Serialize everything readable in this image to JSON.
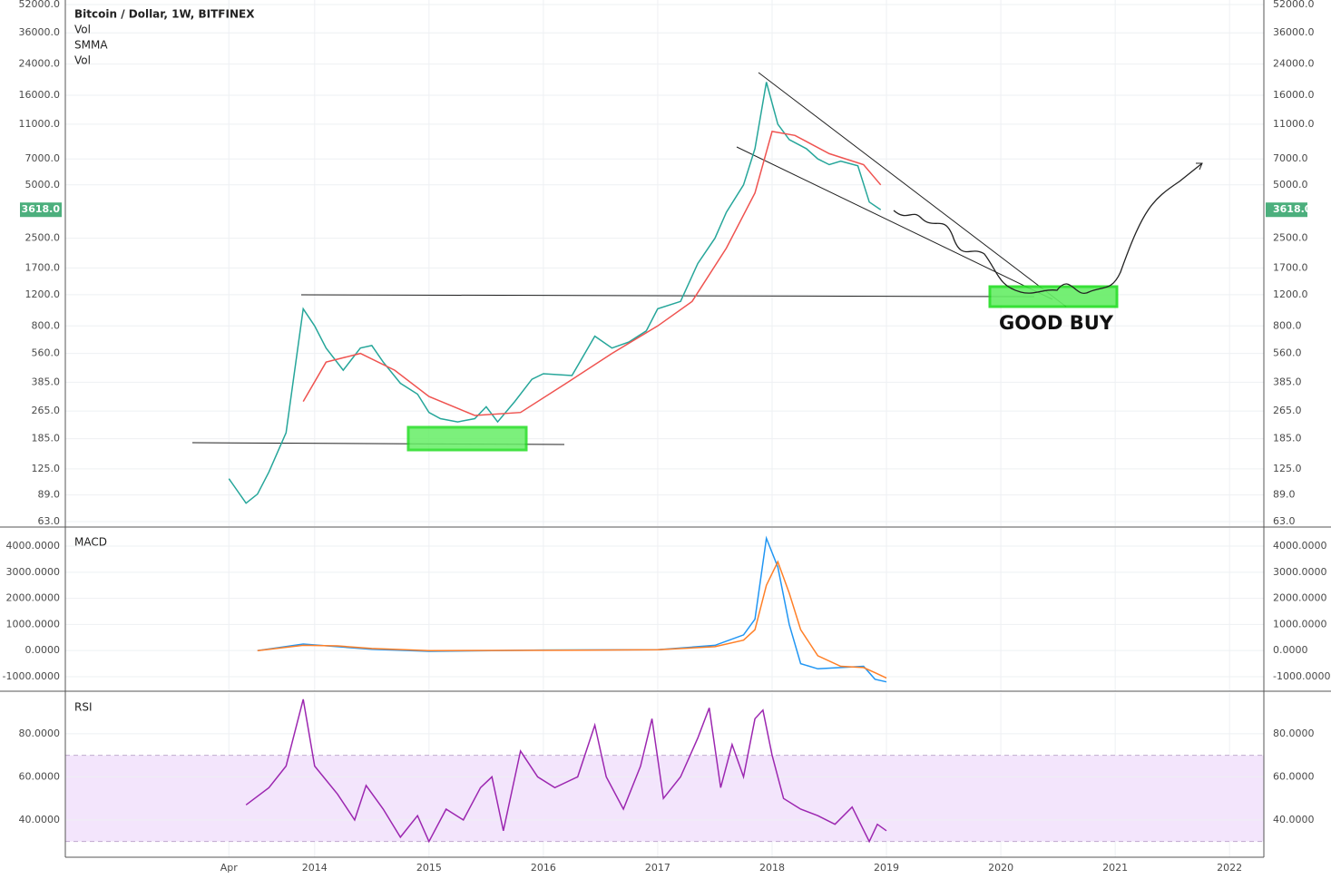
{
  "chart_data": [
    {
      "type": "line",
      "legend": [
        "Bitcoin / Dollar, 1W, BITFINEX",
        "Vol",
        "SMMA",
        "Vol"
      ],
      "log_scale": true,
      "grid": true,
      "ylim": [
        59.4,
        55170
      ],
      "yticks": [
        {
          "value": 52000,
          "label": "52000.0"
        },
        {
          "value": 36000,
          "label": "36000.0"
        },
        {
          "value": 24000,
          "label": "24000.0"
        },
        {
          "value": 16000,
          "label": "16000.0"
        },
        {
          "value": 11000,
          "label": "11000.0"
        },
        {
          "value": 7000,
          "label": "7000.0"
        },
        {
          "value": 5000,
          "label": "5000.0"
        },
        {
          "value": 2500,
          "label": "2500.0"
        },
        {
          "value": 1700,
          "label": "1700.0"
        },
        {
          "value": 1200,
          "label": "1200.0"
        },
        {
          "value": 800,
          "label": "800.0"
        },
        {
          "value": 560,
          "label": "560.0"
        },
        {
          "value": 385,
          "label": "385.0"
        },
        {
          "value": 265,
          "label": "265.0"
        },
        {
          "value": 185,
          "label": "185.0"
        },
        {
          "value": 125,
          "label": "125.0"
        },
        {
          "value": 89,
          "label": "89.0"
        },
        {
          "value": 63,
          "label": "63.0"
        }
      ],
      "last_price": {
        "value": 3618,
        "label": "3618.0",
        "color": "#4caf7d"
      },
      "series": [
        {
          "color": "#26a69a",
          "x": [
            2013.25,
            2013.4,
            2013.5,
            2013.6,
            2013.75,
            2013.9,
            2014.0,
            2014.1,
            2014.25,
            2014.4,
            2014.5,
            2014.6,
            2014.75,
            2014.9,
            2015.0,
            2015.1,
            2015.25,
            2015.4,
            2015.5,
            2015.6,
            2015.75,
            2015.9,
            2016.0,
            2016.25,
            2016.45,
            2016.6,
            2016.75,
            2016.9,
            2017.0,
            2017.2,
            2017.35,
            2017.5,
            2017.6,
            2017.75,
            2017.85,
            2017.95,
            2018.05,
            2018.15,
            2018.3,
            2018.4,
            2018.5,
            2018.6,
            2018.75,
            2018.85,
            2018.95
          ],
          "values": [
            110,
            80,
            90,
            120,
            200,
            1000,
            800,
            600,
            450,
            600,
            620,
            500,
            380,
            330,
            260,
            240,
            230,
            240,
            280,
            230,
            300,
            400,
            430,
            420,
            700,
            600,
            650,
            750,
            1000,
            1100,
            1800,
            2500,
            3500,
            5000,
            8000,
            19000,
            11000,
            9000,
            8000,
            7000,
            6500,
            6800,
            6400,
            4000,
            3618
          ]
        },
        {
          "color": "#ef5350",
          "x": [
            2013.9,
            2014.1,
            2014.4,
            2014.7,
            2015.0,
            2015.4,
            2015.8,
            2016.2,
            2016.6,
            2017.0,
            2017.3,
            2017.6,
            2017.85,
            2018.0,
            2018.2,
            2018.5,
            2018.8,
            2018.95
          ],
          "values": [
            300,
            500,
            560,
            450,
            320,
            250,
            260,
            380,
            560,
            800,
            1100,
            2200,
            4500,
            10000,
            9500,
            7500,
            6500,
            5000
          ]
        }
      ],
      "annotations": [
        "GOOD BUY"
      ]
    },
    {
      "type": "line",
      "title": "MACD",
      "grid": true,
      "ylim": [
        -1557,
        4696
      ],
      "yticks": [
        {
          "value": 4000,
          "label": "4000.0000"
        },
        {
          "value": 3000,
          "label": "3000.0000"
        },
        {
          "value": 2000,
          "label": "2000.0000"
        },
        {
          "value": 1000,
          "label": "1000.0000"
        },
        {
          "value": 0,
          "label": "0.0000"
        },
        {
          "value": -1000,
          "label": "-1000.0000"
        }
      ],
      "series": [
        {
          "color": "#2196f3",
          "x": [
            2013.5,
            2013.9,
            2014.2,
            2014.5,
            2015.0,
            2016.0,
            2017.0,
            2017.5,
            2017.75,
            2017.85,
            2017.95,
            2018.05,
            2018.15,
            2018.25,
            2018.4,
            2018.6,
            2018.8,
            2018.9,
            2019.0
          ],
          "values": [
            0,
            250,
            150,
            50,
            -30,
            20,
            30,
            200,
            600,
            1200,
            4300,
            3200,
            1000,
            -500,
            -700,
            -650,
            -600,
            -1100,
            -1200
          ]
        },
        {
          "color": "#ff7f27",
          "x": [
            2013.5,
            2013.9,
            2014.2,
            2014.5,
            2015.0,
            2016.0,
            2017.0,
            2017.5,
            2017.75,
            2017.85,
            2017.95,
            2018.05,
            2018.15,
            2018.25,
            2018.4,
            2018.6,
            2018.8,
            2018.9,
            2019.0
          ],
          "values": [
            0,
            200,
            180,
            80,
            0,
            10,
            30,
            150,
            400,
            800,
            2500,
            3400,
            2200,
            800,
            -200,
            -600,
            -650,
            -850,
            -1050
          ]
        }
      ]
    },
    {
      "type": "line",
      "title": "RSI",
      "grid": true,
      "ylim": [
        22.7,
        98.9
      ],
      "band": [
        30,
        70
      ],
      "band_color": "#f3e5fc",
      "yticks": [
        {
          "value": 80,
          "label": "80.0000"
        },
        {
          "value": 60,
          "label": "60.0000"
        },
        {
          "value": 40,
          "label": "40.0000"
        }
      ],
      "xlim": [
        2011.82,
        2022.3
      ],
      "xticks": [
        {
          "value": 2013.25,
          "label": "Apr"
        },
        2014,
        2015,
        2016,
        2017,
        2018,
        2019,
        2020,
        2021,
        2022
      ],
      "series": [
        {
          "color": "#9c27b0",
          "x": [
            2013.4,
            2013.6,
            2013.75,
            2013.9,
            2014.0,
            2014.2,
            2014.35,
            2014.45,
            2014.6,
            2014.75,
            2014.9,
            2015.0,
            2015.15,
            2015.3,
            2015.45,
            2015.55,
            2015.65,
            2015.8,
            2015.95,
            2016.1,
            2016.3,
            2016.45,
            2016.55,
            2016.7,
            2016.85,
            2016.95,
            2017.05,
            2017.2,
            2017.35,
            2017.45,
            2017.55,
            2017.65,
            2017.75,
            2017.85,
            2017.92,
            2018.0,
            2018.1,
            2018.25,
            2018.4,
            2018.55,
            2018.7,
            2018.85,
            2018.92,
            2019.0
          ],
          "values": [
            47,
            55,
            65,
            96,
            65,
            52,
            40,
            56,
            45,
            32,
            42,
            30,
            45,
            40,
            55,
            60,
            35,
            72,
            60,
            55,
            60,
            84,
            60,
            45,
            65,
            87,
            50,
            60,
            78,
            92,
            55,
            75,
            60,
            87,
            91,
            70,
            50,
            45,
            42,
            38,
            46,
            30,
            38,
            35
          ]
        }
      ]
    }
  ]
}
